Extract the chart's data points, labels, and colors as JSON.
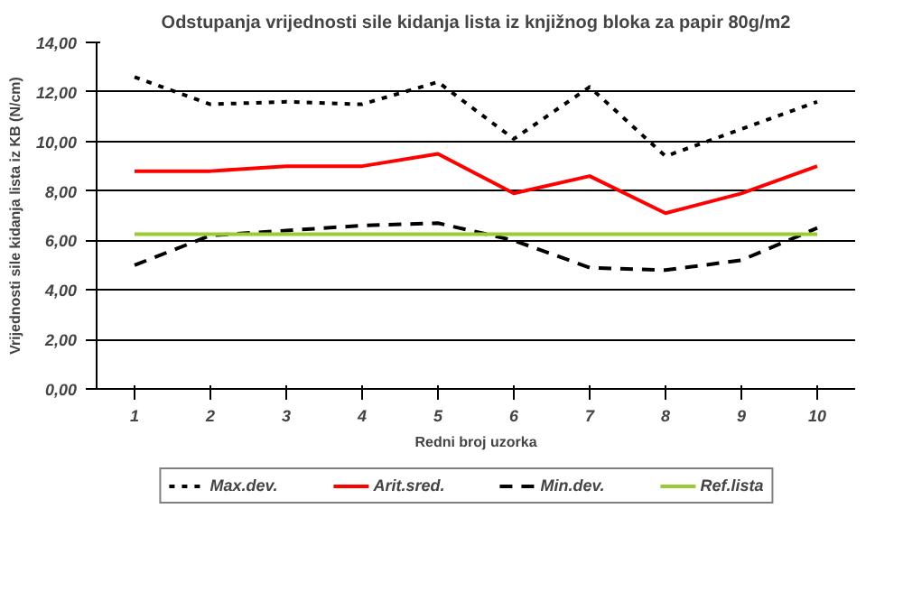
{
  "chart_data": {
    "type": "line",
    "title": "Odstupanja vrijednosti sile kidanja lista iz knjižnog bloka za papir 80g/m2",
    "xlabel": "Redni broj uzorka",
    "ylabel": "Vrijednosti sile kidanja lista iz KB (N/cm)",
    "categories": [
      "1",
      "2",
      "3",
      "4",
      "5",
      "6",
      "7",
      "8",
      "9",
      "10"
    ],
    "series": [
      {
        "name": "Max.dev.",
        "color": "#000000",
        "line_style": "dotted",
        "values": [
          12.6,
          11.5,
          11.6,
          11.5,
          12.4,
          10.1,
          12.2,
          9.4,
          10.5,
          11.6
        ]
      },
      {
        "name": "Arit.sred.",
        "color": "#ff0000",
        "line_style": "solid",
        "values": [
          8.8,
          8.8,
          9.0,
          9.0,
          9.5,
          7.9,
          8.6,
          7.1,
          7.9,
          9.0
        ]
      },
      {
        "name": "Min.dev.",
        "color": "#000000",
        "line_style": "dashed",
        "values": [
          5.0,
          6.2,
          6.4,
          6.6,
          6.7,
          6.0,
          4.9,
          4.8,
          5.2,
          6.5
        ]
      },
      {
        "name": "Ref.lista",
        "color": "#99cc33",
        "line_style": "solid",
        "values": [
          6.25,
          6.25,
          6.25,
          6.25,
          6.25,
          6.25,
          6.25,
          6.25,
          6.25,
          6.25
        ]
      }
    ],
    "ylim": [
      0,
      14
    ],
    "yticks": [
      {
        "value": 0,
        "label": "0,00"
      },
      {
        "value": 2,
        "label": "2,00"
      },
      {
        "value": 4,
        "label": "4,00"
      },
      {
        "value": 6,
        "label": "6,00"
      },
      {
        "value": 8,
        "label": "8,00"
      },
      {
        "value": 10,
        "label": "10,00"
      },
      {
        "value": 12,
        "label": "12,00"
      },
      {
        "value": 14,
        "label": "14,00"
      }
    ],
    "grid": "y",
    "legend": "bottom",
    "marker": "none"
  }
}
